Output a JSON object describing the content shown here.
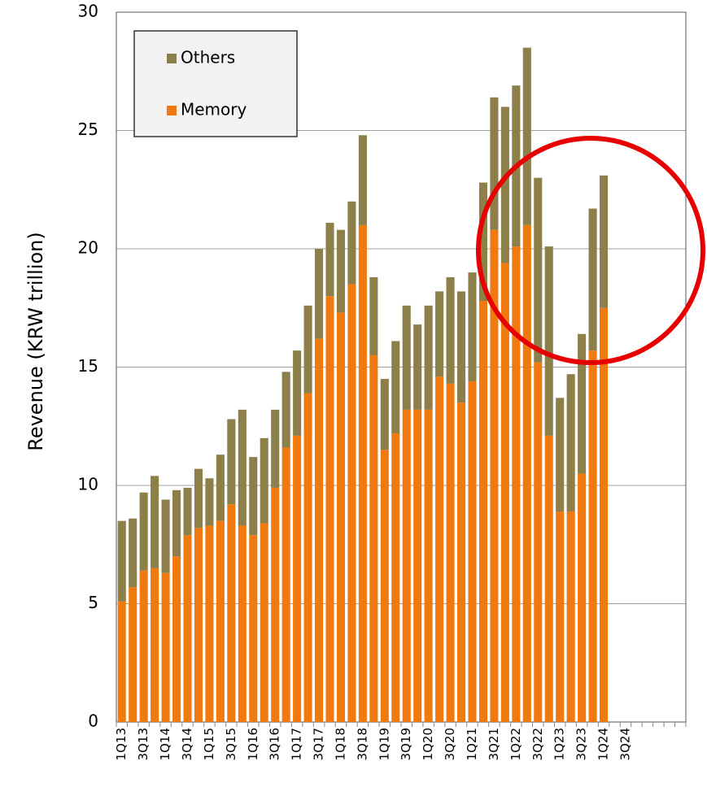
{
  "chart_data": {
    "type": "stacked-bar",
    "y_label": "Revenue (KRW trillion)",
    "categories": [
      "1Q13",
      null,
      "3Q13",
      null,
      "1Q14",
      null,
      "3Q14",
      null,
      "1Q15",
      null,
      "3Q15",
      null,
      "1Q16",
      null,
      "3Q16",
      null,
      "1Q17",
      null,
      "3Q17",
      null,
      "1Q18",
      null,
      "3Q18",
      null,
      "1Q19",
      null,
      "3Q19",
      null,
      "1Q20",
      null,
      "3Q20",
      null,
      "1Q21",
      null,
      "3Q21",
      null,
      "1Q22",
      null,
      "3Q22",
      null,
      "1Q23",
      null,
      "3Q23",
      null,
      "1Q24",
      null,
      "3Q24",
      null,
      null,
      null,
      null,
      null
    ],
    "series": [
      {
        "name": "Memory",
        "color": "#f07a10",
        "values": [
          5.1,
          5.7,
          6.4,
          6.5,
          6.3,
          7.0,
          7.9,
          8.2,
          8.3,
          8.5,
          9.2,
          8.3,
          7.9,
          8.4,
          9.9,
          11.6,
          12.1,
          13.9,
          16.2,
          18.0,
          17.3,
          18.5,
          21.0,
          15.5,
          11.5,
          12.2,
          13.2,
          13.2,
          13.2,
          14.6,
          14.3,
          13.5,
          14.4,
          17.8,
          20.8,
          19.4,
          20.1,
          21.0,
          15.2,
          12.1,
          8.9,
          8.9,
          10.5,
          15.7,
          17.5,
          null,
          null,
          null,
          null,
          null,
          null,
          null
        ]
      },
      {
        "name": "Others",
        "color": "#8c7f4a",
        "values": [
          3.4,
          2.9,
          3.3,
          3.9,
          3.1,
          2.8,
          2.0,
          2.5,
          2.0,
          2.8,
          3.6,
          4.9,
          3.3,
          3.6,
          3.3,
          3.2,
          3.6,
          3.7,
          3.8,
          3.1,
          3.5,
          3.5,
          3.8,
          3.3,
          3.0,
          3.9,
          4.4,
          3.6,
          4.4,
          3.6,
          4.5,
          4.7,
          4.6,
          5.0,
          5.6,
          6.6,
          6.8,
          7.5,
          7.8,
          8.0,
          4.8,
          5.8,
          5.9,
          6.0,
          5.6,
          null,
          null,
          null,
          null,
          null,
          null,
          null
        ]
      }
    ],
    "ylim": [
      0,
      30
    ],
    "yticks": [
      0,
      5,
      10,
      15,
      20,
      25,
      30
    ],
    "grid": true
  }
}
